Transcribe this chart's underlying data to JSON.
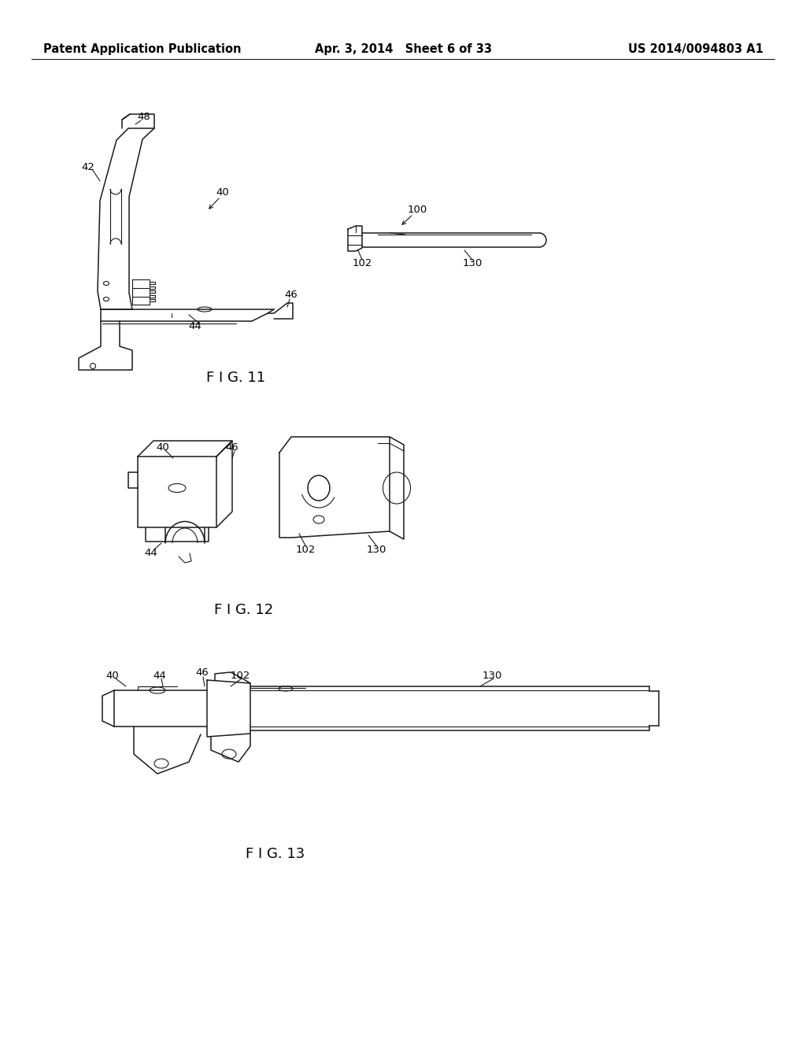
{
  "background_color": "#ffffff",
  "line_color": "#1a1a1a",
  "header_left": "Patent Application Publication",
  "header_center": "Apr. 3, 2014   Sheet 6 of 33",
  "header_right": "US 2014/0094803 A1",
  "fig11_caption": "F I G. 11",
  "fig12_caption": "F I G. 12",
  "fig13_caption": "F I G. 13",
  "header_fontsize": 10.5,
  "label_fontsize": 9.5,
  "caption_fontsize": 13
}
